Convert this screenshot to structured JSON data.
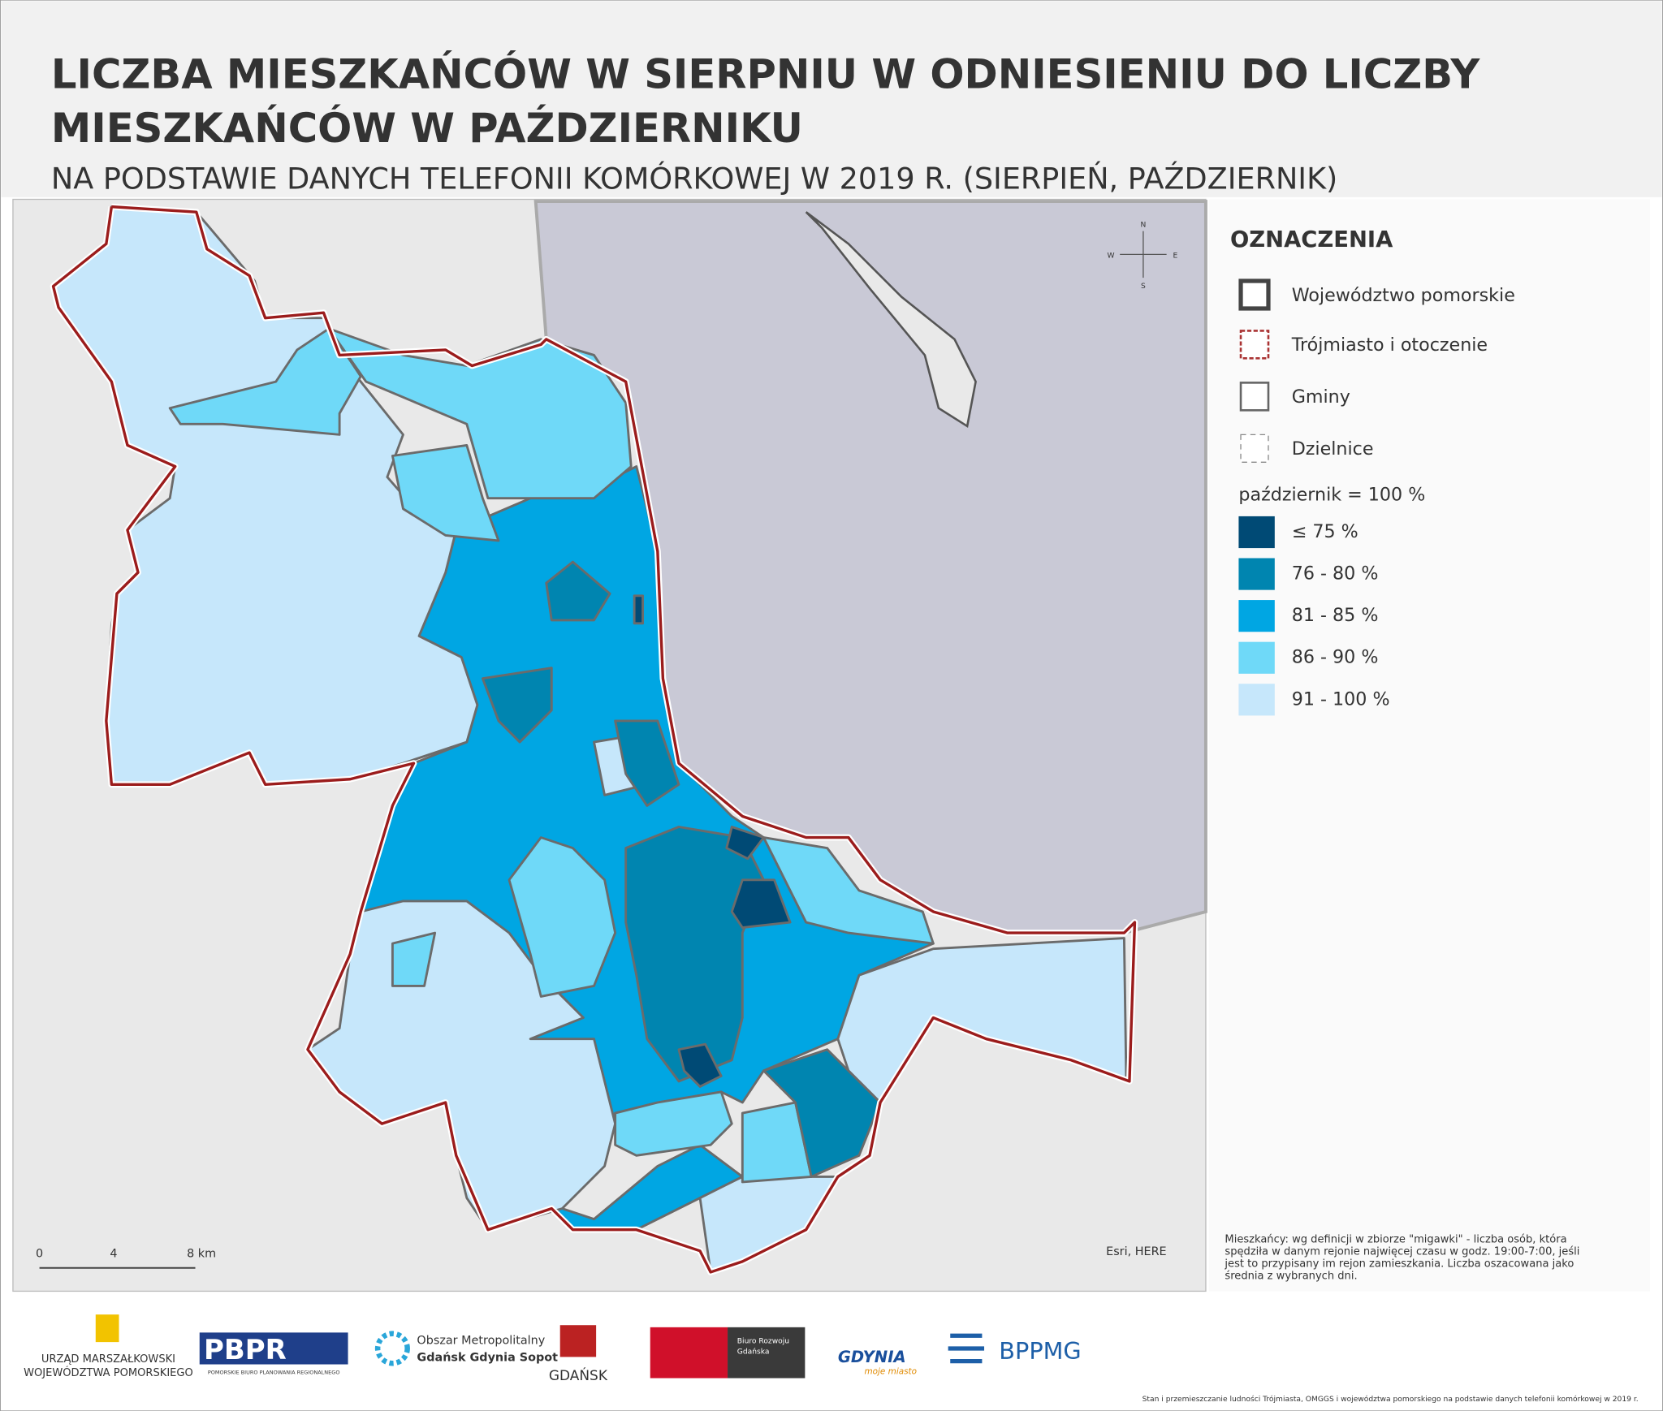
{
  "header": {
    "title_lines": [
      "LICZBA MIESZKAŃCÓW W SIERPNIU W ODNIESIENIU DO LICZBY",
      "MIESZKAŃCÓW W PAŹDZIERNIKU"
    ],
    "subtitle": "NA PODSTAWIE DANYCH TELEFONII KOMÓRKOWEJ W 2019 R. (SIERPIEŃ, PAŹDZIERNIK)"
  },
  "legend": {
    "title": "OZNACZENIA",
    "items": [
      "Województwo pomorskie",
      "Trójmiasto i otoczenie",
      "Gminy",
      "Dzielnice"
    ],
    "classes_title": "październik = 100 %",
    "classes": [
      {
        "label": "≤ 75 %",
        "color": "#004a75"
      },
      {
        "label": "76 - 80 %",
        "color": "#0085b0"
      },
      {
        "label": "81 - 85 %",
        "color": "#00a6e3"
      },
      {
        "label": "86 - 90 %",
        "color": "#6fd9f8"
      },
      {
        "label": "91 - 100 %",
        "color": "#c6e7fb"
      }
    ]
  },
  "map": {
    "compass": {
      "n": "N",
      "e": "E",
      "s": "S",
      "w": "W"
    },
    "scale": [
      "0",
      "4",
      "8 km"
    ],
    "attribution": "Esri, HERE"
  },
  "footnote": [
    "Mieszkańcy: wg definicji w zbiorze \"migawki\" - liczba osób, która",
    "spędziła w danym rejonie najwięcej czasu w godz. 19:00-7:00, jeśli",
    "jest to przypisany im rejon zamieszkania. Liczba oszacowana jako",
    "średnia z wybranych dni."
  ],
  "logos": {
    "um": [
      "URZĄD MARSZAŁKOWSKI",
      "WOJEWÓDZTWA POMORSKIEGO"
    ],
    "pbpr": "PBPR",
    "pbpr_sub": "POMORSKIE BIURO PLANOWANIA REGIONALNEGO",
    "om": [
      "Obszar Metropolitalny",
      "Gdańsk Gdynia Sopot"
    ],
    "gdansk": "GDAŃSK",
    "brg": [
      "Biuro Rozwoju",
      "Gdańska"
    ],
    "gdynia": "GDYNIA",
    "gdynia_sub": "moje miasto",
    "bppmg": "BPPMG"
  },
  "credit": "Stan i przemieszczanie ludności Trójmiasta, OMGGS i województwa pomorskiego na podstawie danych telefonii komórkowej w 2019 r."
}
